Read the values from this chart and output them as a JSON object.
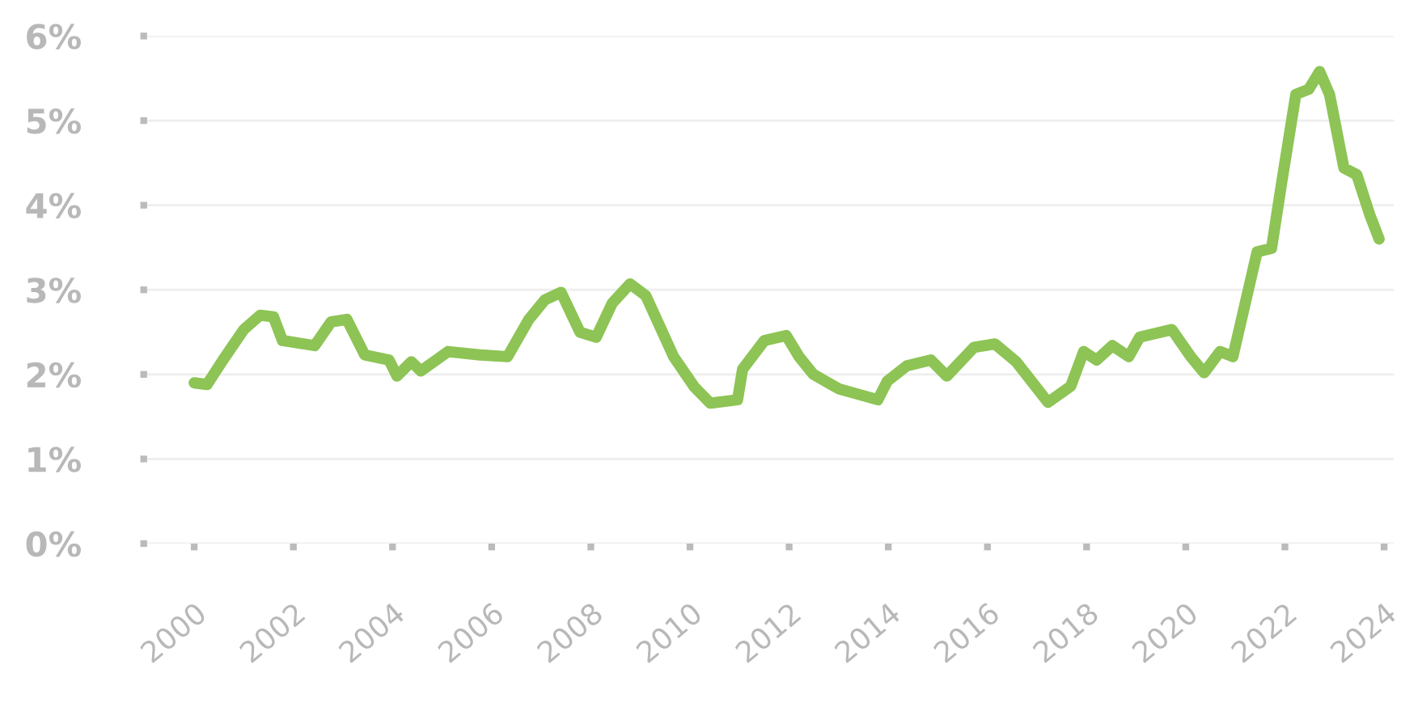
{
  "chart_data": {
    "type": "line",
    "color": "#8dc455",
    "grid": "y",
    "marker": "none",
    "line_style": "solid",
    "x": [
      2000.0,
      2000.26,
      2000.58,
      2001.0,
      2001.33,
      2001.6,
      2001.78,
      2002.43,
      2002.76,
      2003.08,
      2003.44,
      2003.93,
      2004.09,
      2004.38,
      2004.57,
      2005.12,
      2005.77,
      2006.32,
      2006.75,
      2007.07,
      2007.4,
      2007.78,
      2008.11,
      2008.43,
      2008.79,
      2009.11,
      2009.67,
      2010.09,
      2010.41,
      2010.96,
      2011.06,
      2011.5,
      2011.94,
      2012.2,
      2012.49,
      2013.0,
      2013.79,
      2013.98,
      2014.37,
      2014.86,
      2015.18,
      2015.73,
      2016.15,
      2016.58,
      2017.22,
      2017.68,
      2017.94,
      2018.2,
      2018.52,
      2018.85,
      2019.07,
      2019.72,
      2020.1,
      2020.37,
      2020.69,
      2020.95,
      2021.44,
      2021.73,
      2021.93,
      2022.22,
      2022.48,
      2022.7,
      2022.9,
      2023.19,
      2023.45,
      2023.71,
      2023.9
    ],
    "values": [
      1.9,
      1.88,
      2.17,
      2.53,
      2.7,
      2.68,
      2.4,
      2.34,
      2.62,
      2.65,
      2.23,
      2.17,
      1.98,
      2.15,
      2.04,
      2.27,
      2.23,
      2.21,
      2.65,
      2.88,
      2.97,
      2.5,
      2.44,
      2.84,
      3.07,
      2.93,
      2.21,
      1.85,
      1.66,
      1.7,
      2.06,
      2.4,
      2.46,
      2.21,
      2.0,
      1.83,
      1.7,
      1.92,
      2.1,
      2.17,
      1.98,
      2.32,
      2.36,
      2.15,
      1.67,
      1.86,
      2.27,
      2.17,
      2.34,
      2.21,
      2.44,
      2.53,
      2.21,
      2.02,
      2.27,
      2.21,
      3.45,
      3.49,
      4.25,
      5.31,
      5.37,
      5.58,
      5.31,
      4.44,
      4.36,
      3.89,
      3.6
    ],
    "xlim": [
      1999.05,
      2024.2
    ],
    "ylim": [
      0,
      6
    ],
    "xticks": [
      2000,
      2002,
      2004,
      2006,
      2008,
      2010,
      2012,
      2014,
      2016,
      2018,
      2020,
      2022,
      2024
    ],
    "yticks": [
      {
        "value": 0,
        "label": "0%"
      },
      {
        "value": 1,
        "label": "1%"
      },
      {
        "value": 2,
        "label": "2%"
      },
      {
        "value": 3,
        "label": "3%"
      },
      {
        "value": 4,
        "label": "4%"
      },
      {
        "value": 5,
        "label": "5%"
      },
      {
        "value": 6,
        "label": "6%"
      }
    ]
  }
}
